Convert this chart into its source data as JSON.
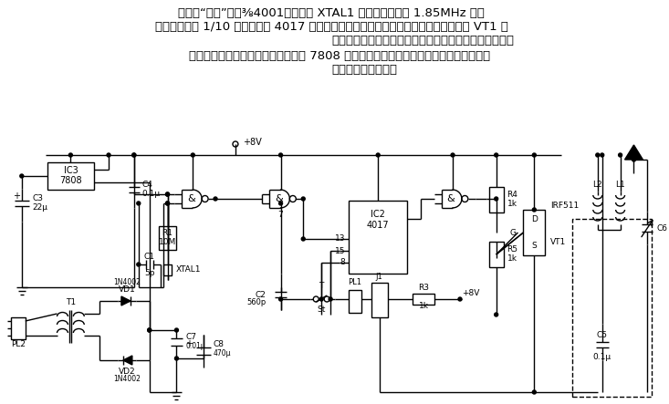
{
  "bg_color": "#ffffff",
  "line_color": "#000000",
  "lw": 1.0,
  "para1_line1": "电路中“与非”门（⅜4001）、晶振 XTAL1 和阻容元件构成 1.85MHz 方波",
  "para1_line2": "振荡器，后接 1/10 分频器（由 4017 十进制计数器构成）。输出信号通过场效应晶体管 VT1 放",
  "para1_line3": "大，由调谐网络（虚线框所示）和天线把信号发射出去。",
  "para2_line1": "    该电路信号部分电源由稳压集成电路 7808 供给，功率放大部分则直接由交流电源降压、",
  "para2_line2": "整流、滤波后供给。"
}
